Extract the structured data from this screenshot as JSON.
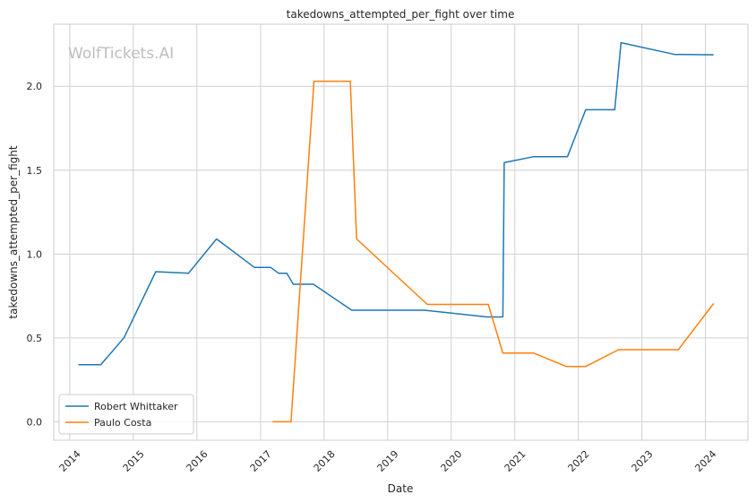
{
  "chart_data": {
    "type": "line",
    "title": "takedowns_attempted_per_fight over time",
    "xlabel": "Date",
    "ylabel": "takedowns_attempted_per_fight",
    "watermark": "WolfTickets.AI",
    "grid": true,
    "legend_position": "lower-left",
    "x_ticks": [
      "2014",
      "2015",
      "2016",
      "2017",
      "2018",
      "2019",
      "2020",
      "2021",
      "2022",
      "2023",
      "2024"
    ],
    "y_ticks": [
      "0.0",
      "0.5",
      "1.0",
      "1.5",
      "2.0"
    ],
    "xlim": [
      "2013-10-01",
      "2024-09-01"
    ],
    "ylim": [
      -0.11,
      2.37
    ],
    "series": [
      {
        "name": "Robert Whittaker",
        "color": "#1f77b4",
        "points": [
          [
            "2014-02-20",
            0.34
          ],
          [
            "2014-06-28",
            0.34
          ],
          [
            "2014-11-08",
            0.5
          ],
          [
            "2015-05-10",
            0.895
          ],
          [
            "2015-11-14",
            0.885
          ],
          [
            "2016-04-23",
            1.09
          ],
          [
            "2016-11-27",
            0.92
          ],
          [
            "2017-03-01",
            0.92
          ],
          [
            "2017-04-15",
            0.885
          ],
          [
            "2017-06-01",
            0.885
          ],
          [
            "2017-07-08",
            0.82
          ],
          [
            "2017-11-01",
            0.82
          ],
          [
            "2018-06-09",
            0.665
          ],
          [
            "2019-08-01",
            0.665
          ],
          [
            "2020-07-25",
            0.625
          ],
          [
            "2020-10-24",
            0.625
          ],
          [
            "2020-11-01",
            1.545
          ],
          [
            "2021-04-17",
            1.58
          ],
          [
            "2021-10-30",
            1.58
          ],
          [
            "2022-02-12",
            1.86
          ],
          [
            "2022-07-29",
            1.86
          ],
          [
            "2022-09-03",
            2.26
          ],
          [
            "2023-07-08",
            2.19
          ],
          [
            "2024-02-17",
            2.188
          ]
        ]
      },
      {
        "name": "Paulo Costa",
        "color": "#ff7f0e",
        "points": [
          [
            "2017-03-11",
            0.0
          ],
          [
            "2017-06-25",
            0.0
          ],
          [
            "2017-11-04",
            2.03
          ],
          [
            "2018-06-01",
            2.03
          ],
          [
            "2018-07-07",
            1.09
          ],
          [
            "2019-08-17",
            0.7
          ],
          [
            "2020-08-01",
            0.7
          ],
          [
            "2020-10-24",
            0.41
          ],
          [
            "2021-04-17",
            0.41
          ],
          [
            "2021-10-23",
            0.33
          ],
          [
            "2022-02-12",
            0.33
          ],
          [
            "2022-08-20",
            0.43
          ],
          [
            "2023-07-29",
            0.43
          ],
          [
            "2024-02-17",
            0.705
          ]
        ]
      }
    ]
  }
}
